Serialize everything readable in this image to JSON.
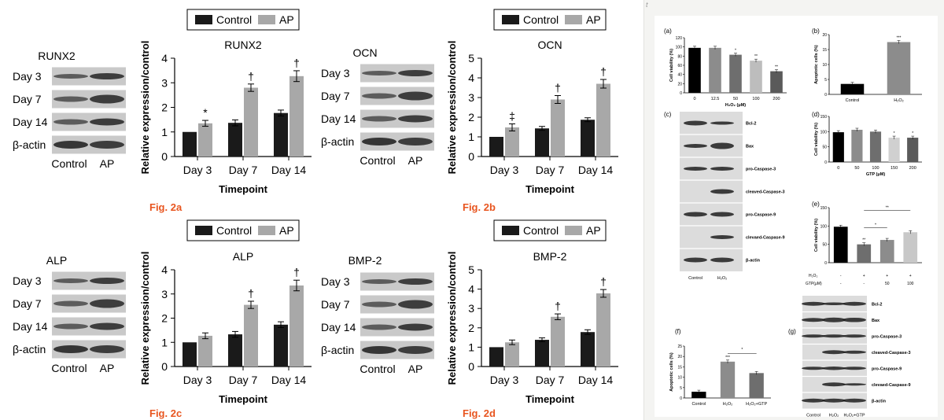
{
  "colors": {
    "control": "#1a1a1a",
    "ap": "#a8a8a8",
    "fig_label": "#e8551f",
    "blot_bg": "#c9c9c9",
    "band": "#2e2e2e"
  },
  "common": {
    "legend_control": "Control",
    "legend_ap": "AP",
    "ylabel": "Relative expression/control",
    "xlabel": "Timepoint",
    "blot_rows": [
      "Day 3",
      "Day 7",
      "Day 14",
      "β-actin"
    ],
    "blot_cols": [
      "Control",
      "AP"
    ]
  },
  "chart_data": [
    {
      "type": "bar",
      "id": "2a",
      "title": "RUNX2",
      "fig_label": "Fig. 2a",
      "categories": [
        "Day 3",
        "Day 7",
        "Day 14"
      ],
      "ylim": [
        0,
        4
      ],
      "yticks": [
        "0",
        "1",
        "2",
        "3",
        "4"
      ],
      "series": [
        {
          "name": "Control",
          "values": [
            1.0,
            1.37,
            1.77
          ],
          "errors": [
            0,
            0.12,
            0.12
          ]
        },
        {
          "name": "AP",
          "values": [
            1.35,
            2.8,
            3.27
          ],
          "errors": [
            0.12,
            0.15,
            0.22
          ]
        }
      ],
      "annotations": [
        "*",
        "†",
        "†"
      ]
    },
    {
      "type": "bar",
      "id": "2b",
      "title": "OCN",
      "fig_label": "Fig. 2b",
      "categories": [
        "Day 3",
        "Day 7",
        "Day 14"
      ],
      "ylim": [
        0,
        5
      ],
      "yticks": [
        "0",
        "1",
        "2",
        "3",
        "4",
        "5"
      ],
      "series": [
        {
          "name": "Control",
          "values": [
            1.0,
            1.43,
            1.87
          ],
          "errors": [
            0,
            0.1,
            0.1
          ]
        },
        {
          "name": "AP",
          "values": [
            1.48,
            2.9,
            3.7
          ],
          "errors": [
            0.18,
            0.2,
            0.22
          ]
        }
      ],
      "annotations": [
        "‡",
        "†",
        "†"
      ]
    },
    {
      "type": "bar",
      "id": "2c",
      "title": "ALP",
      "fig_label": "Fig. 2c",
      "categories": [
        "Day 3",
        "Day 7",
        "Day 14"
      ],
      "ylim": [
        0,
        4
      ],
      "yticks": [
        "0",
        "1",
        "2",
        "3",
        "4"
      ],
      "series": [
        {
          "name": "Control",
          "values": [
            1.0,
            1.33,
            1.73
          ],
          "errors": [
            0,
            0.12,
            0.12
          ]
        },
        {
          "name": "AP",
          "values": [
            1.27,
            2.55,
            3.35
          ],
          "errors": [
            0.12,
            0.15,
            0.22
          ]
        }
      ],
      "annotations": [
        "",
        "†",
        "†"
      ]
    },
    {
      "type": "bar",
      "id": "2d",
      "title": "BMP-2",
      "fig_label": "Fig. 2d",
      "categories": [
        "Day 3",
        "Day 7",
        "Day 14"
      ],
      "ylim": [
        0,
        5
      ],
      "yticks": [
        "0",
        "1",
        "2",
        "3",
        "4",
        "5"
      ],
      "series": [
        {
          "name": "Control",
          "values": [
            1.0,
            1.38,
            1.78
          ],
          "errors": [
            0,
            0.1,
            0.12
          ]
        },
        {
          "name": "AP",
          "values": [
            1.25,
            2.57,
            3.78
          ],
          "errors": [
            0.12,
            0.15,
            0.2
          ]
        }
      ],
      "annotations": [
        "",
        "†",
        "†"
      ]
    }
  ],
  "blots": [
    {
      "title": "RUNX2"
    },
    {
      "title": "OCN"
    },
    {
      "title": "ALP"
    },
    {
      "title": "BMP-2"
    }
  ],
  "right": {
    "corner_mark": "t",
    "a": {
      "label": "(a)",
      "ylabel": "Cell viability (%)",
      "xlabel": "H₂O₂ (μM)",
      "categories": [
        "0",
        "12.5",
        "50",
        "100",
        "200"
      ],
      "values": [
        98,
        98,
        83,
        70,
        47
      ],
      "yticks": [
        "0",
        "20",
        "40",
        "60",
        "80",
        "100",
        "120"
      ],
      "ylim": [
        0,
        120
      ],
      "stars": [
        "",
        "",
        "*",
        "**",
        "**"
      ]
    },
    "b": {
      "label": "(b)",
      "ylabel": "Apoptotic cells (%)",
      "categories": [
        "Control",
        "H₂O₂"
      ],
      "values": [
        3.5,
        17.5
      ],
      "yticks": [
        "0",
        "5",
        "10",
        "15",
        "20"
      ],
      "ylim": [
        0,
        20
      ],
      "stars": [
        "",
        "***"
      ]
    },
    "c": {
      "label": "(c)",
      "bands": [
        "Bcl-2",
        "Bax",
        "pro-Caspase-3",
        "cleaved-Caspase-3",
        "pro-Caspase-9",
        "clevaed-Caspase-9",
        "β-actin"
      ],
      "cols": [
        "Control",
        "H₂O₂"
      ]
    },
    "d": {
      "label": "(d)",
      "ylabel": "Cell viability (%)",
      "xlabel": "GTP (μM)",
      "categories": [
        "0",
        "50",
        "100",
        "150",
        "200"
      ],
      "values": [
        98,
        106,
        100,
        80,
        80
      ],
      "yticks": [
        "0",
        "50",
        "100",
        "150"
      ],
      "ylim": [
        0,
        150
      ],
      "stars": [
        "",
        "",
        "",
        "*",
        "*"
      ]
    },
    "e": {
      "label": "(e)",
      "ylabel": "Cell viability (%)",
      "values": [
        98,
        50,
        62,
        83
      ],
      "yticks": [
        "0",
        "50",
        "100",
        "150"
      ],
      "ylim": [
        0,
        150
      ],
      "h2o2_label": "H₂O₂",
      "h2o2_row": [
        "-",
        "+",
        "+",
        "+"
      ],
      "gtp_label": "GTP(μM)",
      "gtp_row": [
        "-",
        "-",
        "50",
        "100"
      ],
      "stars": [
        "",
        "**",
        "",
        ""
      ],
      "sig1": "*",
      "sig2": "**"
    },
    "f": {
      "label": "(f)",
      "ylabel": "Apoptotic cells (%)",
      "categories": [
        "Control",
        "H₂O₂",
        "H₂O₂+GTP"
      ],
      "values": [
        3,
        17.5,
        12
      ],
      "yticks": [
        "0",
        "5",
        "10",
        "15",
        "20",
        "25"
      ],
      "ylim": [
        0,
        25
      ],
      "stars": [
        "",
        "***",
        ""
      ],
      "sig": "*"
    },
    "g": {
      "label": "(g)",
      "bands": [
        "Bcl-2",
        "Bax",
        "pro-Caspase-3",
        "cleaved-Caspase-3",
        "pro-Caspase-9",
        "clevaed-Caspase-9",
        "β-actin"
      ],
      "cols": [
        "Control",
        "H₂O₂",
        "H₂O₂+GTP"
      ]
    }
  }
}
